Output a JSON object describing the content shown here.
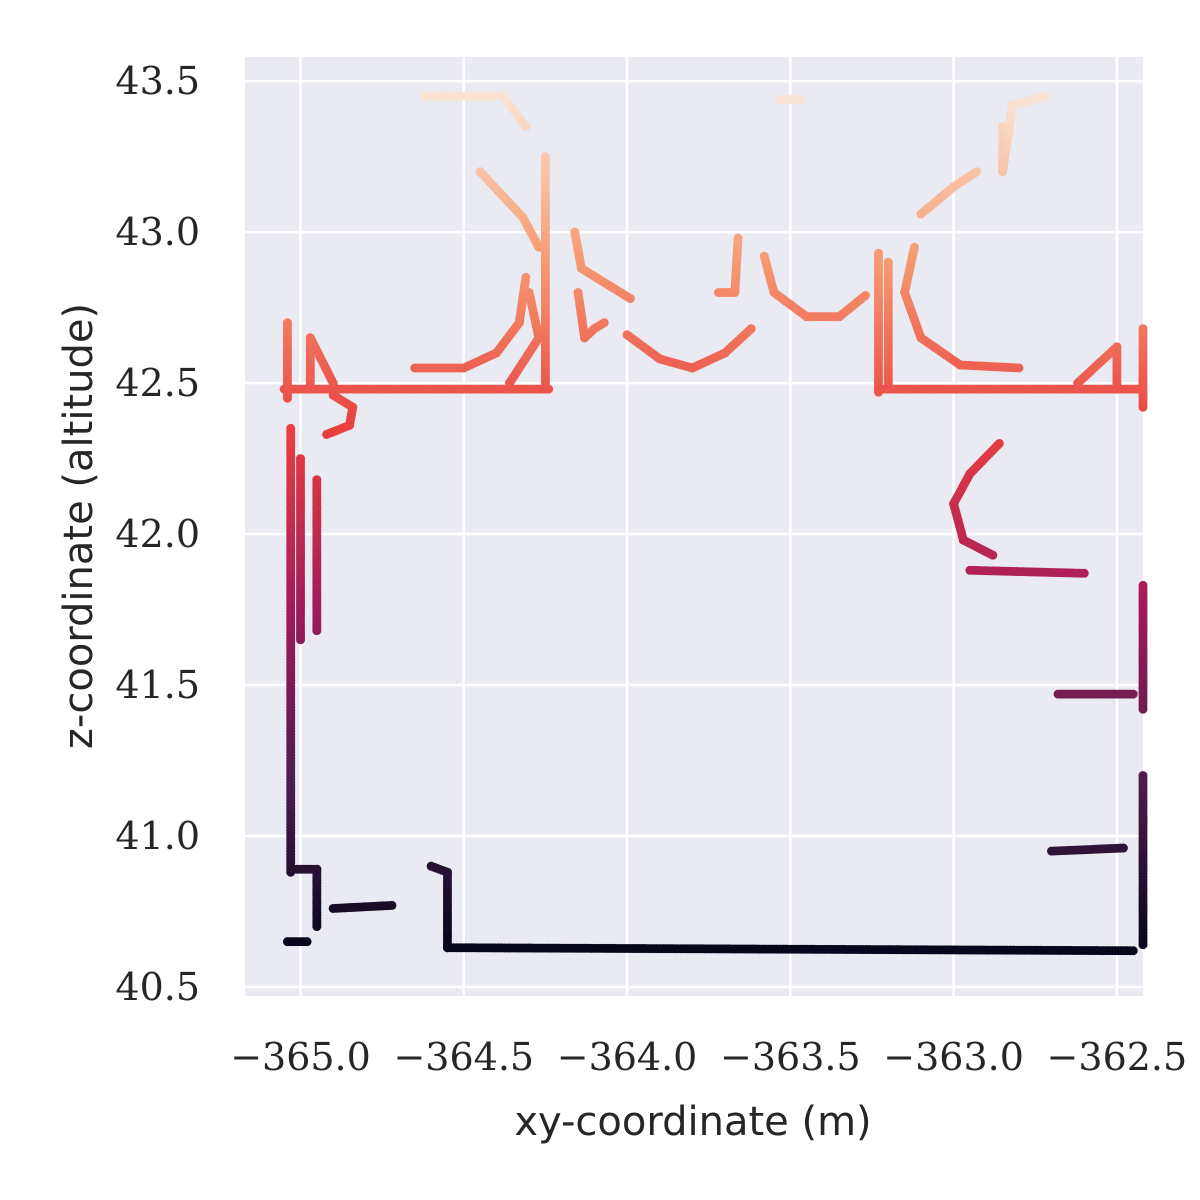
{
  "chart_data": {
    "type": "scatter",
    "title": "",
    "xlabel": "xy-coordinate (m)",
    "ylabel": "z-coordinate (altitude)",
    "xlim": [
      -365.17,
      -362.42
    ],
    "ylim": [
      40.47,
      43.58
    ],
    "xticks": [
      -365.0,
      -364.5,
      -364.0,
      -363.5,
      -363.0,
      -362.5
    ],
    "xtick_labels": [
      "−365.0",
      "−364.5",
      "−364.0",
      "−363.5",
      "−363.0",
      "−362.5"
    ],
    "yticks": [
      40.5,
      41.0,
      41.5,
      42.0,
      42.5,
      43.0,
      43.5
    ],
    "ytick_labels": [
      "40.5",
      "41.0",
      "41.5",
      "42.0",
      "42.5",
      "43.0",
      "43.5"
    ],
    "grid": true,
    "background": "#eaeaf2",
    "grid_color": "#ffffff",
    "colormap": "rocket",
    "color_encodes": "z",
    "colormap_stops": [
      "#03051a",
      "#4c1d4b",
      "#a11a5b",
      "#e83f3f",
      "#f69c73",
      "#faebdd"
    ],
    "segments": [
      {
        "desc": "left wall",
        "points": [
          [
            -365.03,
            40.88
          ],
          [
            -365.03,
            42.35
          ]
        ]
      },
      {
        "desc": "left wall thick band",
        "points": [
          [
            -365.0,
            41.65
          ],
          [
            -365.0,
            42.25
          ]
        ]
      },
      {
        "desc": "left wall thick band 2",
        "points": [
          [
            -364.95,
            41.68
          ],
          [
            -364.95,
            42.18
          ]
        ]
      },
      {
        "desc": "left bottom step",
        "points": [
          [
            -365.02,
            40.89
          ],
          [
            -364.95,
            40.89
          ],
          [
            -364.95,
            40.7
          ]
        ]
      },
      {
        "desc": "small bottom bench",
        "points": [
          [
            -364.9,
            40.76
          ],
          [
            -364.72,
            40.77
          ]
        ]
      },
      {
        "desc": "bottom floor",
        "points": [
          [
            -364.6,
            40.9
          ],
          [
            -364.55,
            40.88
          ],
          [
            -364.55,
            40.63
          ],
          [
            -362.45,
            40.62
          ]
        ]
      },
      {
        "desc": "right bottom wall",
        "points": [
          [
            -362.42,
            40.64
          ],
          [
            -362.42,
            41.2
          ]
        ]
      },
      {
        "desc": "right lower shelf",
        "points": [
          [
            -362.7,
            40.95
          ],
          [
            -362.48,
            40.96
          ]
        ]
      },
      {
        "desc": "right mid wall",
        "points": [
          [
            -362.42,
            41.42
          ],
          [
            -362.42,
            41.83
          ]
        ]
      },
      {
        "desc": "right mid shelf",
        "points": [
          [
            -362.68,
            41.47
          ],
          [
            -362.45,
            41.47
          ]
        ]
      },
      {
        "desc": "right shelf 42",
        "points": [
          [
            -362.95,
            41.88
          ],
          [
            -362.6,
            41.87
          ]
        ]
      },
      {
        "desc": "right arc",
        "points": [
          [
            -362.86,
            42.3
          ],
          [
            -362.95,
            42.2
          ],
          [
            -363.0,
            42.1
          ],
          [
            -362.97,
            41.98
          ],
          [
            -362.88,
            41.93
          ]
        ]
      },
      {
        "desc": "top left ledge",
        "points": [
          [
            -365.05,
            42.48
          ],
          [
            -364.24,
            42.48
          ]
        ]
      },
      {
        "desc": "top left post",
        "points": [
          [
            -365.04,
            42.45
          ],
          [
            -365.04,
            42.7
          ]
        ]
      },
      {
        "desc": "top left bevel",
        "points": [
          [
            -364.97,
            42.48
          ],
          [
            -364.97,
            42.65
          ],
          [
            -364.9,
            42.5
          ]
        ]
      },
      {
        "desc": "top left hook",
        "points": [
          [
            -364.9,
            42.46
          ],
          [
            -364.84,
            42.42
          ],
          [
            -364.85,
            42.36
          ],
          [
            -364.92,
            42.33
          ]
        ]
      },
      {
        "desc": "left arc",
        "points": [
          [
            -364.65,
            42.55
          ],
          [
            -364.5,
            42.55
          ],
          [
            -364.4,
            42.6
          ],
          [
            -364.33,
            42.7
          ],
          [
            -364.31,
            42.85
          ]
        ]
      },
      {
        "desc": "left tower",
        "points": [
          [
            -364.25,
            42.48
          ],
          [
            -364.25,
            43.25
          ]
        ]
      },
      {
        "desc": "left tower diag",
        "points": [
          [
            -364.45,
            43.2
          ],
          [
            -364.32,
            43.05
          ],
          [
            -364.27,
            42.95
          ]
        ]
      },
      {
        "desc": "left tower diag 2",
        "points": [
          [
            -364.36,
            42.5
          ],
          [
            -364.27,
            42.65
          ],
          [
            -364.3,
            42.8
          ]
        ]
      },
      {
        "desc": "top left cap",
        "points": [
          [
            -364.62,
            43.45
          ],
          [
            -364.38,
            43.45
          ],
          [
            -364.31,
            43.35
          ]
        ]
      },
      {
        "desc": "center-left arc",
        "points": [
          [
            -364.0,
            42.66
          ],
          [
            -363.9,
            42.58
          ],
          [
            -363.8,
            42.55
          ],
          [
            -363.7,
            42.6
          ],
          [
            -363.62,
            42.68
          ]
        ]
      },
      {
        "desc": "center arc",
        "points": [
          [
            -363.58,
            42.92
          ],
          [
            -363.55,
            42.8
          ],
          [
            -363.45,
            42.72
          ],
          [
            -363.35,
            42.72
          ],
          [
            -363.27,
            42.79
          ]
        ]
      },
      {
        "desc": "small top dots",
        "points": [
          [
            -363.53,
            43.44
          ],
          [
            -363.47,
            43.44
          ]
        ]
      },
      {
        "desc": "right tower",
        "points": [
          [
            -363.23,
            42.47
          ],
          [
            -363.23,
            42.93
          ]
        ]
      },
      {
        "desc": "right tower band",
        "points": [
          [
            -363.2,
            42.5
          ],
          [
            -363.2,
            42.9
          ]
        ]
      },
      {
        "desc": "right arc top",
        "points": [
          [
            -363.12,
            42.95
          ],
          [
            -363.15,
            42.8
          ],
          [
            -363.1,
            42.65
          ],
          [
            -362.98,
            42.56
          ],
          [
            -362.8,
            42.55
          ]
        ]
      },
      {
        "desc": "top right ledge",
        "points": [
          [
            -363.23,
            42.48
          ],
          [
            -362.43,
            42.48
          ]
        ]
      },
      {
        "desc": "top right post",
        "points": [
          [
            -362.42,
            42.42
          ],
          [
            -362.42,
            42.68
          ]
        ]
      },
      {
        "desc": "top right bevel",
        "points": [
          [
            -362.62,
            42.5
          ],
          [
            -362.5,
            42.62
          ],
          [
            -362.5,
            42.48
          ]
        ]
      },
      {
        "desc": "top right diag dots",
        "points": [
          [
            -363.1,
            43.06
          ],
          [
            -363.0,
            43.15
          ],
          [
            -362.93,
            43.2
          ]
        ]
      },
      {
        "desc": "top right cap",
        "points": [
          [
            -362.85,
            43.35
          ],
          [
            -362.85,
            43.2
          ],
          [
            -362.82,
            43.42
          ],
          [
            -362.72,
            43.45
          ]
        ]
      },
      {
        "desc": "misc mid dots",
        "points": [
          [
            -364.15,
            42.8
          ],
          [
            -364.13,
            42.65
          ],
          [
            -364.1,
            42.68
          ],
          [
            -364.07,
            42.7
          ]
        ]
      },
      {
        "desc": "misc upper dots",
        "points": [
          [
            -364.16,
            43.0
          ],
          [
            -364.14,
            42.88
          ],
          [
            -364.05,
            42.82
          ],
          [
            -363.99,
            42.78
          ]
        ]
      },
      {
        "desc": "misc dots center",
        "points": [
          [
            -363.72,
            42.8
          ],
          [
            -363.67,
            42.8
          ],
          [
            -363.66,
            42.98
          ]
        ]
      },
      {
        "desc": "stray bottom dots",
        "points": [
          [
            -365.04,
            40.65
          ],
          [
            -364.98,
            40.65
          ]
        ]
      }
    ]
  }
}
